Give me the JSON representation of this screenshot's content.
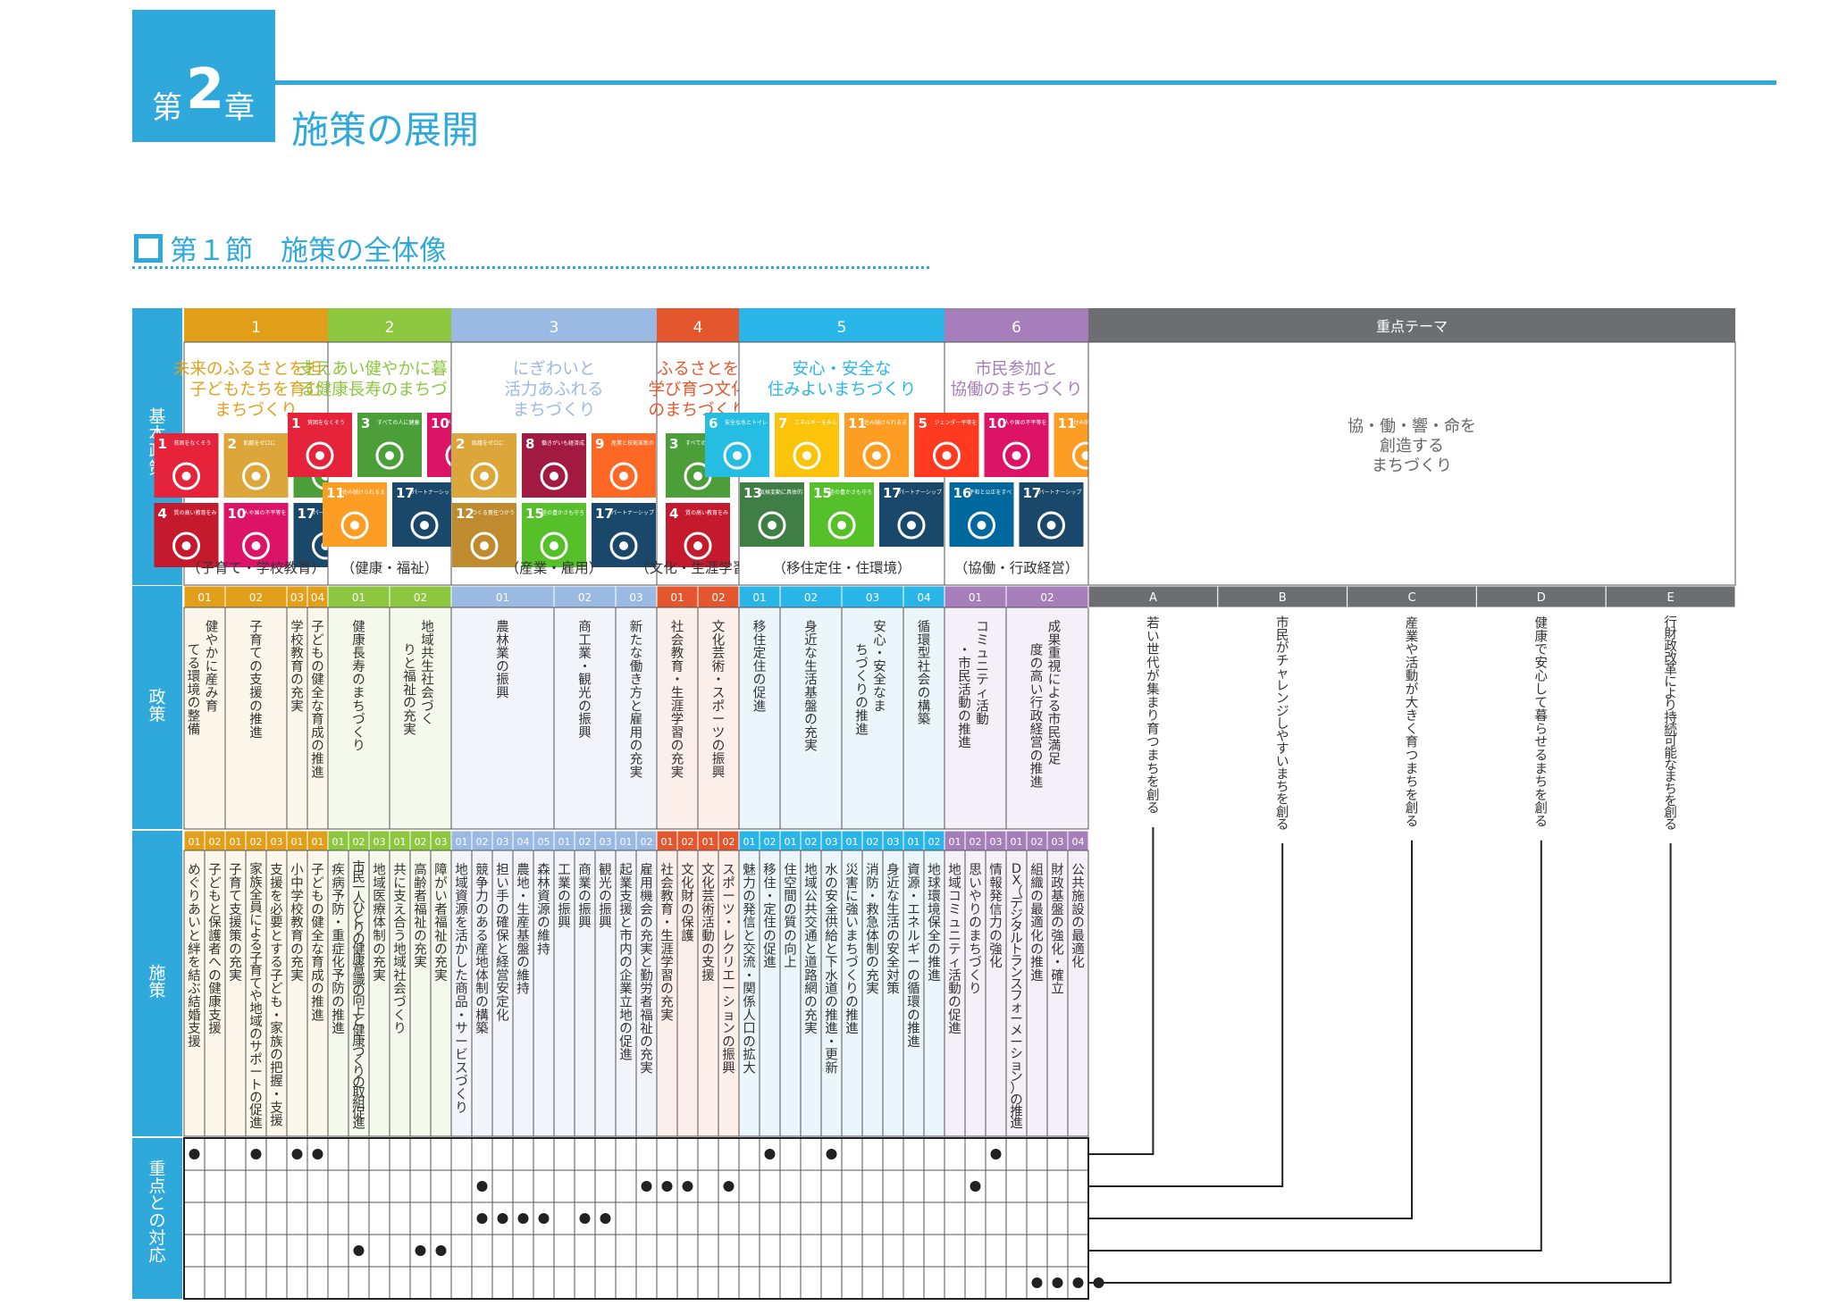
{
  "chapter": {
    "prefix": "第",
    "number": "2",
    "suffix": "章",
    "title": "施策の展開"
  },
  "section": {
    "title": "第１節　施策の全体像"
  },
  "row_labels": {
    "basic": "基本政策",
    "policy": "政策",
    "measure": "施策",
    "priority": "重点との対応"
  },
  "themes_header": "重点テーマ",
  "themes_title": [
    "協・働・響・命を",
    "創造する",
    "まちづくり"
  ],
  "colors": {
    "blue": "#2fa9dc",
    "gridline": "#555555",
    "dot": "#222222"
  },
  "sdg_labels": {
    "1": {
      "color": "#e5243b",
      "caption": "貧困をなくそう",
      "icon": "family-icon"
    },
    "2": {
      "color": "#dda63a",
      "caption": "飢餓をゼロに",
      "icon": "bowl-icon"
    },
    "3": {
      "color": "#4c9f38",
      "caption": "すべての人に健康と福祉を",
      "icon": "heartbeat-icon"
    },
    "4": {
      "color": "#c5192d",
      "caption": "質の高い教育をみんなに",
      "icon": "book-icon"
    },
    "5": {
      "color": "#ff3a21",
      "caption": "ジェンダー平等を実現しよう",
      "icon": "gender-icon"
    },
    "6": {
      "color": "#26bde2",
      "caption": "安全な水とトイレを世界中に",
      "icon": "water-icon"
    },
    "7": {
      "color": "#fcc30b",
      "caption": "エネルギーをみんなにそしてクリーンに",
      "icon": "sun-icon"
    },
    "8": {
      "color": "#a21942",
      "caption": "働きがいも経済成長も",
      "icon": "growth-chart-icon"
    },
    "9": {
      "color": "#fd6925",
      "caption": "産業と技術革新の基盤をつくろう",
      "icon": "cubes-icon"
    },
    "10": {
      "color": "#dd1367",
      "caption": "人や国の不平等をなくそう",
      "icon": "equality-icon"
    },
    "11": {
      "color": "#fd9d24",
      "caption": "住み続けられるまちづくりを",
      "icon": "city-icon"
    },
    "12": {
      "color": "#bf8b2e",
      "caption": "つくる責任つかう責任",
      "icon": "infinity-icon"
    },
    "13": {
      "color": "#3f7e44",
      "caption": "気候変動に具体的な対策を",
      "icon": "eye-globe-icon"
    },
    "15": {
      "color": "#56c02b",
      "caption": "陸の豊かさも守ろう",
      "icon": "tree-icon"
    },
    "16": {
      "color": "#00689d",
      "caption": "平和と公正をすべての人に",
      "icon": "dove-icon"
    },
    "17": {
      "color": "#19486a",
      "caption": "パートナーシップで目標を達成しよう",
      "icon": "rings-icon"
    }
  },
  "basic_policies": [
    {
      "num": "1",
      "color": "#e2a01a",
      "light": "#fdf6ea",
      "title": [
        "未来のふるさとを担う",
        "子どもたちを育む",
        "まちづくり"
      ],
      "sdgs": [
        [
          "1",
          "2",
          "3"
        ],
        [
          "4",
          "10",
          "17"
        ]
      ],
      "tag": "（子育て・学校教育）",
      "policies": [
        {
          "num": "01",
          "name": "健やかに産み育てる環境の整備",
          "measures": [
            {
              "num": "01",
              "name": "めぐりあいと絆を結ぶ結婚支援"
            },
            {
              "num": "02",
              "name": "子どもと保護者への健康支援"
            }
          ]
        },
        {
          "num": "02",
          "name": "子育ての支援の推進",
          "measures": [
            {
              "num": "01",
              "name": "子育て支援策の充実"
            },
            {
              "num": "02",
              "name": "家族全員による子育てや地域のサポートの促進"
            },
            {
              "num": "03",
              "name": "支援を必要とする子ども・家族の把握・支援"
            }
          ]
        },
        {
          "num": "03",
          "name": "学校教育の充実",
          "measures": [
            {
              "num": "01",
              "name": "小中学校教育の充実"
            }
          ]
        },
        {
          "num": "04",
          "name": "子どもの健全な育成の推進",
          "measures": [
            {
              "num": "01",
              "name": "子どもの健全な育成の推進"
            }
          ]
        }
      ]
    },
    {
      "num": "2",
      "color": "#8dc63f",
      "light": "#f4f9ec",
      "title": [
        "支えあい健やかに暮らせ",
        "る健康長寿のまちづくり"
      ],
      "sdgs": [
        [
          "1",
          "3",
          "10"
        ],
        [
          "11",
          "17"
        ]
      ],
      "tag": "（健康・福祉）",
      "policies": [
        {
          "num": "01",
          "name": "健康長寿のまちづくり",
          "measures": [
            {
              "num": "01",
              "name": "疾病予防・重症化予防の推進"
            },
            {
              "num": "02",
              "name": "市民一人ひとりの健康意識の向上と健康づくりの取組促進"
            },
            {
              "num": "03",
              "name": "地域医療体制の充実"
            }
          ]
        },
        {
          "num": "02",
          "name": "地域共生社会づくりと福祉の充実",
          "measures": [
            {
              "num": "01",
              "name": "共に支え合う地域社会づくり"
            },
            {
              "num": "02",
              "name": "高齢者福祉の充実"
            },
            {
              "num": "03",
              "name": "障がい者福祉の充実"
            }
          ]
        }
      ]
    },
    {
      "num": "3",
      "color": "#9ab9e3",
      "light": "#f1f5fb",
      "title": [
        "にぎわいと",
        "活力あふれる",
        "まちづくり"
      ],
      "sdgs": [
        [
          "2",
          "8",
          "9"
        ],
        [
          "12",
          "15",
          "17"
        ]
      ],
      "tag": "（産業・雇用）",
      "policies": [
        {
          "num": "01",
          "name": "農林業の振興",
          "measures": [
            {
              "num": "01",
              "name": "地域資源を活かした商品・サービスづくり"
            },
            {
              "num": "02",
              "name": "競争力のある産地体制の構築"
            },
            {
              "num": "03",
              "name": "担い手の確保と経営安定化"
            },
            {
              "num": "04",
              "name": "農地・生産基盤の維持"
            },
            {
              "num": "05",
              "name": "森林資源の維持"
            }
          ]
        },
        {
          "num": "02",
          "name": "商工業・観光の振興",
          "measures": [
            {
              "num": "01",
              "name": "工業の振興"
            },
            {
              "num": "02",
              "name": "商業の振興"
            },
            {
              "num": "03",
              "name": "観光の振興"
            }
          ]
        },
        {
          "num": "03",
          "name": "新たな働き方と雇用の充実",
          "measures": [
            {
              "num": "01",
              "name": "起業支援と市内の企業立地の促進"
            },
            {
              "num": "02",
              "name": "雇用機会の充実と勤労者福祉の充実"
            }
          ]
        }
      ]
    },
    {
      "num": "4",
      "color": "#e4572e",
      "light": "#fcefea",
      "title": [
        "ふるさとを",
        "学び育つ文化",
        "のまちづくり"
      ],
      "sdgs": [
        [
          "3"
        ],
        [
          "4"
        ]
      ],
      "tag": "（文化・生涯学習）",
      "policies": [
        {
          "num": "01",
          "name": "社会教育・生涯学習の充実",
          "measures": [
            {
              "num": "01",
              "name": "社会教育・生涯学習の充実"
            },
            {
              "num": "02",
              "name": "文化財の保護"
            }
          ]
        },
        {
          "num": "02",
          "name": "文化芸術・スポーツの振興",
          "measures": [
            {
              "num": "01",
              "name": "文化芸術活動の支援"
            },
            {
              "num": "02",
              "name": "スポーツ・レクリエーションの振興"
            }
          ]
        }
      ]
    },
    {
      "num": "5",
      "color": "#29b5e8",
      "light": "#eaf6fc",
      "title": [
        "安心・安全な",
        "住みよいまちづくり"
      ],
      "sdgs": [
        [
          "6",
          "7",
          "11",
          "12"
        ],
        [
          "13",
          "15",
          "17"
        ]
      ],
      "tag": "（移住定住・住環境）",
      "policies": [
        {
          "num": "01",
          "name": "移住定住の促進",
          "measures": [
            {
              "num": "01",
              "name": "魅力の発信と交流・関係人口の拡大"
            },
            {
              "num": "02",
              "name": "移住・定住の促進"
            }
          ]
        },
        {
          "num": "02",
          "name": "身近な生活基盤の充実",
          "measures": [
            {
              "num": "01",
              "name": "住空間の質の向上"
            },
            {
              "num": "02",
              "name": "地域公共交通と道路網の充実"
            },
            {
              "num": "03",
              "name": "水の安全供給と下水道の推進・更新"
            }
          ]
        },
        {
          "num": "03",
          "name": "安心・安全なまちづくりの推進",
          "measures": [
            {
              "num": "01",
              "name": "災害に強いまちづくりの推進"
            },
            {
              "num": "02",
              "name": "消防・救急体制の充実"
            },
            {
              "num": "03",
              "name": "身近な生活の安全対策"
            }
          ]
        },
        {
          "num": "04",
          "name": "循環型社会の構築",
          "measures": [
            {
              "num": "01",
              "name": "資源・エネルギーの循環の推進"
            },
            {
              "num": "02",
              "name": "地球環境保全の推進"
            }
          ]
        }
      ]
    },
    {
      "num": "6",
      "color": "#a67fba",
      "light": "#f5f0f8",
      "title": [
        "市民参加と",
        "協働のまちづくり"
      ],
      "sdgs": [
        [
          "5",
          "10",
          "11"
        ],
        [
          "16",
          "17"
        ]
      ],
      "tag": "（協働・行政経営）",
      "policies": [
        {
          "num": "01",
          "name": "コミュニティ活動・市民活動の推進",
          "measures": [
            {
              "num": "01",
              "name": "地域コミュニティ活動の促進"
            },
            {
              "num": "02",
              "name": "思いやりのまちづくり"
            },
            {
              "num": "03",
              "name": "情報発信力の強化"
            }
          ]
        },
        {
          "num": "02",
          "name": "成果重視による市民満足度の高い行政経営の推進",
          "measures": [
            {
              "num": "01",
              "name": "DX（デジタルトランスフォーメーション）の推進"
            },
            {
              "num": "02",
              "name": "組織の最適化の推進"
            },
            {
              "num": "03",
              "name": "財政基盤の強化・確立"
            },
            {
              "num": "04",
              "name": "公共施設の最適化"
            }
          ]
        }
      ]
    }
  ],
  "themes": [
    {
      "letter": "A",
      "name": "若い世代が集まり育つまちを創る"
    },
    {
      "letter": "B",
      "name": "市民がチャレンジしやすいまちを創る"
    },
    {
      "letter": "C",
      "name": "産業や活動が大きく育つまちを創る"
    },
    {
      "letter": "D",
      "name": "健康で安心して暮らせるまちを創る"
    },
    {
      "letter": "E",
      "name": "行財政改革により持続可能なまちを創る"
    }
  ],
  "priority_dots": [
    [
      0,
      3,
      5,
      6,
      28,
      31,
      39
    ],
    [
      14,
      22,
      23,
      24,
      26,
      38
    ],
    [
      14,
      15,
      16,
      17,
      19,
      20
    ],
    [
      8,
      11,
      12
    ],
    [
      41,
      42,
      43,
      44
    ]
  ]
}
